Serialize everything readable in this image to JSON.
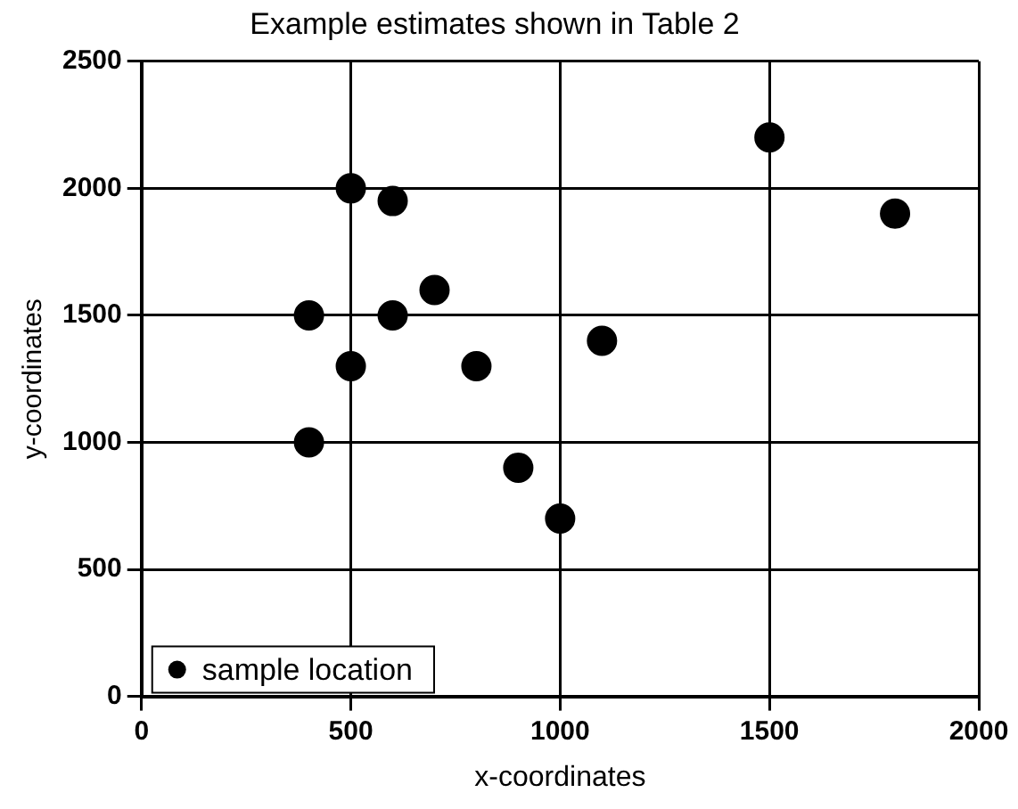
{
  "chart_data": {
    "type": "scatter",
    "title": "Example estimates shown in Table 2",
    "xlabel": "x-coordinates",
    "ylabel": "y-coordinates",
    "x": [
      400,
      500,
      600,
      700,
      400,
      500,
      600,
      800,
      900,
      1000,
      1100,
      1500,
      1800
    ],
    "series": [
      {
        "name": "sample location",
        "color": "#000000",
        "values": [
          1500,
          2000,
          1950,
          1600,
          1000,
          1300,
          1500,
          1300,
          900,
          700,
          1400,
          2200,
          1900
        ]
      }
    ],
    "xlim": [
      0,
      2000
    ],
    "xticks": [
      0,
      500,
      1000,
      1500,
      2000
    ],
    "ylim": [
      0,
      2500
    ],
    "yticks": [
      0,
      500,
      1000,
      1500,
      2000,
      2500
    ],
    "grid": true,
    "legend": "bottom left",
    "marker": "circle"
  }
}
